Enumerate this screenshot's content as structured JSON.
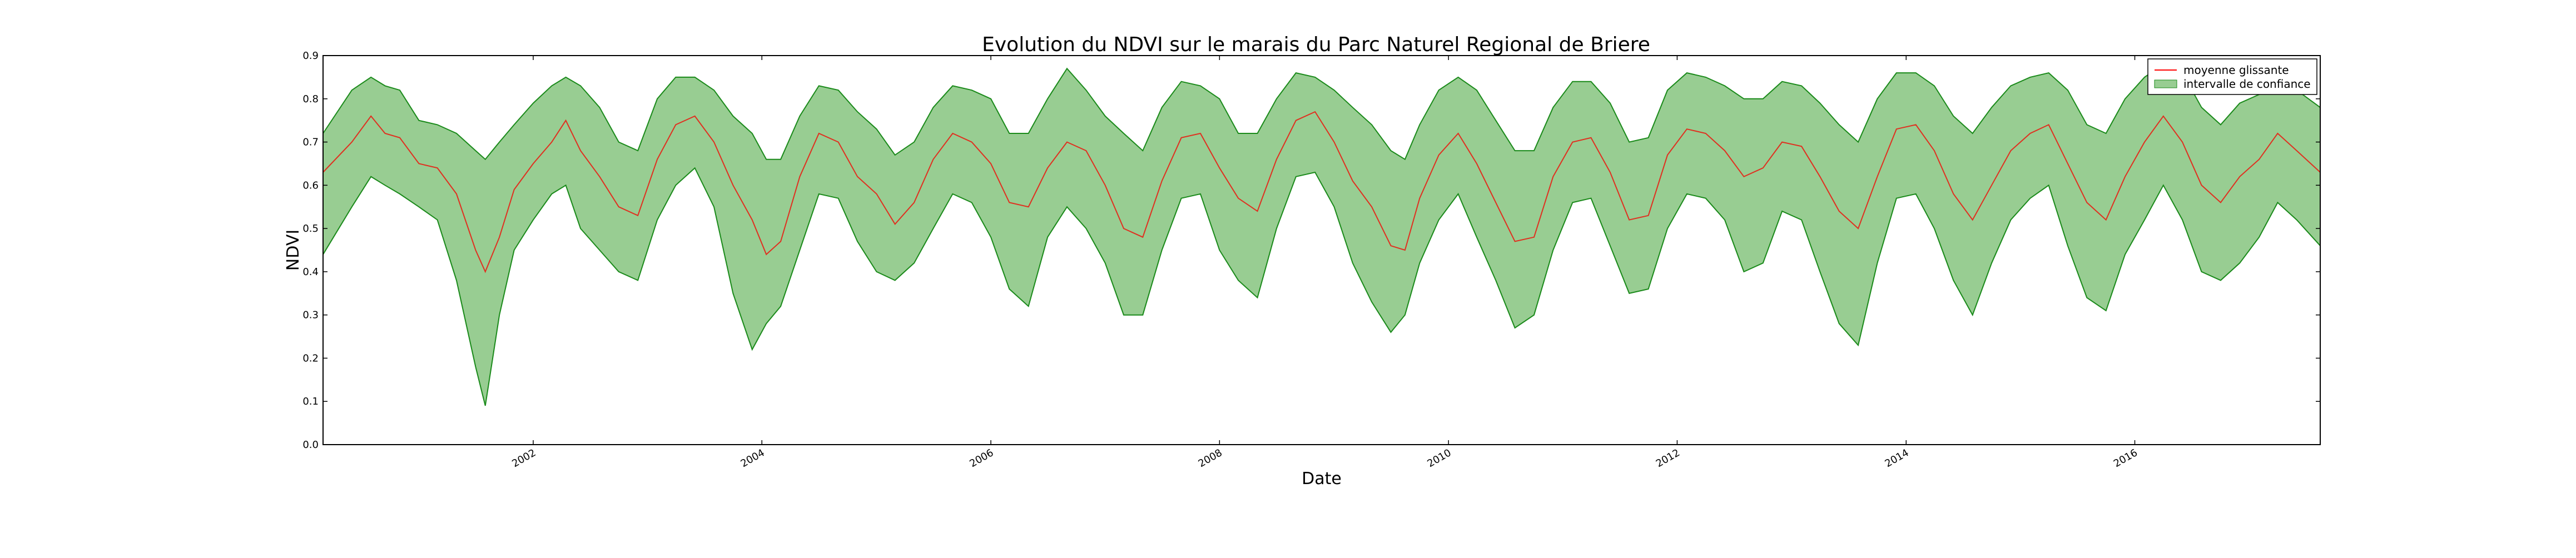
{
  "chart_data": {
    "type": "area",
    "title": "Evolution du NDVI sur le marais du Parc Naturel Regional de Briere",
    "xlabel": "Date",
    "ylabel": "NDVI",
    "xlim": [
      "2000-03-01",
      "2017-08-15"
    ],
    "ylim": [
      0.0,
      0.9
    ],
    "yticks": [
      "0.0",
      "0.1",
      "0.2",
      "0.3",
      "0.4",
      "0.5",
      "0.6",
      "0.7",
      "0.8",
      "0.9"
    ],
    "xticks": [
      "2002",
      "2004",
      "2006",
      "2008",
      "2010",
      "2012",
      "2014",
      "2016"
    ],
    "grid": false,
    "legend": {
      "position": "top-right",
      "entries": [
        {
          "label": "moyenne glissante",
          "type": "line",
          "color": "#ff0000"
        },
        {
          "label": "intervalle de confiance",
          "type": "area",
          "color": "#98cd92"
        }
      ]
    },
    "colors": {
      "mean_line": "#e03020",
      "band_fill": "#98cd92",
      "band_edge": "#1a8a1a"
    },
    "series": [
      {
        "name": "moyenne glissante",
        "role": "mean",
        "points": [
          [
            "2000-03-01",
            0.63
          ],
          [
            "2000-06-01",
            0.7
          ],
          [
            "2000-08-01",
            0.76
          ],
          [
            "2000-09-15",
            0.72
          ],
          [
            "2000-11-01",
            0.71
          ],
          [
            "2001-01-01",
            0.65
          ],
          [
            "2001-03-01",
            0.64
          ],
          [
            "2001-05-01",
            0.58
          ],
          [
            "2001-07-01",
            0.45
          ],
          [
            "2001-08-01",
            0.4
          ],
          [
            "2001-09-15",
            0.48
          ],
          [
            "2001-11-01",
            0.59
          ],
          [
            "2002-01-01",
            0.65
          ],
          [
            "2002-03-01",
            0.7
          ],
          [
            "2002-04-15",
            0.75
          ],
          [
            "2002-06-01",
            0.68
          ],
          [
            "2002-08-01",
            0.62
          ],
          [
            "2002-10-01",
            0.55
          ],
          [
            "2002-12-01",
            0.53
          ],
          [
            "2003-02-01",
            0.66
          ],
          [
            "2003-04-01",
            0.74
          ],
          [
            "2003-06-01",
            0.76
          ],
          [
            "2003-08-01",
            0.7
          ],
          [
            "2003-10-01",
            0.6
          ],
          [
            "2003-12-01",
            0.52
          ],
          [
            "2004-01-15",
            0.44
          ],
          [
            "2004-03-01",
            0.47
          ],
          [
            "2004-05-01",
            0.62
          ],
          [
            "2004-07-01",
            0.72
          ],
          [
            "2004-09-01",
            0.7
          ],
          [
            "2004-11-01",
            0.62
          ],
          [
            "2005-01-01",
            0.58
          ],
          [
            "2005-03-01",
            0.51
          ],
          [
            "2005-05-01",
            0.56
          ],
          [
            "2005-07-01",
            0.66
          ],
          [
            "2005-09-01",
            0.72
          ],
          [
            "2005-11-01",
            0.7
          ],
          [
            "2006-01-01",
            0.65
          ],
          [
            "2006-03-01",
            0.56
          ],
          [
            "2006-05-01",
            0.55
          ],
          [
            "2006-07-01",
            0.64
          ],
          [
            "2006-09-01",
            0.7
          ],
          [
            "2006-11-01",
            0.68
          ],
          [
            "2007-01-01",
            0.6
          ],
          [
            "2007-03-01",
            0.5
          ],
          [
            "2007-05-01",
            0.48
          ],
          [
            "2007-07-01",
            0.61
          ],
          [
            "2007-09-01",
            0.71
          ],
          [
            "2007-11-01",
            0.72
          ],
          [
            "2008-01-01",
            0.64
          ],
          [
            "2008-03-01",
            0.57
          ],
          [
            "2008-05-01",
            0.54
          ],
          [
            "2008-07-01",
            0.66
          ],
          [
            "2008-09-01",
            0.75
          ],
          [
            "2008-11-01",
            0.77
          ],
          [
            "2009-01-01",
            0.7
          ],
          [
            "2009-03-01",
            0.61
          ],
          [
            "2009-05-01",
            0.55
          ],
          [
            "2009-07-01",
            0.46
          ],
          [
            "2009-08-15",
            0.45
          ],
          [
            "2009-10-01",
            0.57
          ],
          [
            "2009-12-01",
            0.67
          ],
          [
            "2010-02-01",
            0.72
          ],
          [
            "2010-04-01",
            0.65
          ],
          [
            "2010-06-01",
            0.56
          ],
          [
            "2010-08-01",
            0.47
          ],
          [
            "2010-10-01",
            0.48
          ],
          [
            "2010-12-01",
            0.62
          ],
          [
            "2011-02-01",
            0.7
          ],
          [
            "2011-04-01",
            0.71
          ],
          [
            "2011-06-01",
            0.63
          ],
          [
            "2011-08-01",
            0.52
          ],
          [
            "2011-10-01",
            0.53
          ],
          [
            "2011-12-01",
            0.67
          ],
          [
            "2012-02-01",
            0.73
          ],
          [
            "2012-04-01",
            0.72
          ],
          [
            "2012-06-01",
            0.68
          ],
          [
            "2012-08-01",
            0.62
          ],
          [
            "2012-10-01",
            0.64
          ],
          [
            "2012-12-01",
            0.7
          ],
          [
            "2013-02-01",
            0.69
          ],
          [
            "2013-04-01",
            0.62
          ],
          [
            "2013-06-01",
            0.54
          ],
          [
            "2013-08-01",
            0.5
          ],
          [
            "2013-10-01",
            0.62
          ],
          [
            "2013-12-01",
            0.73
          ],
          [
            "2014-02-01",
            0.74
          ],
          [
            "2014-04-01",
            0.68
          ],
          [
            "2014-06-01",
            0.58
          ],
          [
            "2014-08-01",
            0.52
          ],
          [
            "2014-10-01",
            0.6
          ],
          [
            "2014-12-01",
            0.68
          ],
          [
            "2015-02-01",
            0.72
          ],
          [
            "2015-04-01",
            0.74
          ],
          [
            "2015-06-01",
            0.65
          ],
          [
            "2015-08-01",
            0.56
          ],
          [
            "2015-10-01",
            0.52
          ],
          [
            "2015-12-01",
            0.62
          ],
          [
            "2016-02-01",
            0.7
          ],
          [
            "2016-04-01",
            0.76
          ],
          [
            "2016-06-01",
            0.7
          ],
          [
            "2016-08-01",
            0.6
          ],
          [
            "2016-10-01",
            0.56
          ],
          [
            "2016-12-01",
            0.62
          ],
          [
            "2017-02-01",
            0.66
          ],
          [
            "2017-04-01",
            0.72
          ],
          [
            "2017-06-01",
            0.68
          ],
          [
            "2017-08-15",
            0.63
          ]
        ]
      },
      {
        "name": "intervalle de confiance",
        "role": "band",
        "points": [
          [
            "2000-03-01",
            0.44,
            0.72
          ],
          [
            "2000-06-01",
            0.55,
            0.82
          ],
          [
            "2000-08-01",
            0.62,
            0.85
          ],
          [
            "2000-09-15",
            0.6,
            0.83
          ],
          [
            "2000-11-01",
            0.58,
            0.82
          ],
          [
            "2001-01-01",
            0.55,
            0.75
          ],
          [
            "2001-03-01",
            0.52,
            0.74
          ],
          [
            "2001-05-01",
            0.38,
            0.72
          ],
          [
            "2001-07-01",
            0.18,
            0.68
          ],
          [
            "2001-08-01",
            0.09,
            0.66
          ],
          [
            "2001-09-15",
            0.3,
            0.7
          ],
          [
            "2001-11-01",
            0.45,
            0.74
          ],
          [
            "2002-01-01",
            0.52,
            0.79
          ],
          [
            "2002-03-01",
            0.58,
            0.83
          ],
          [
            "2002-04-15",
            0.6,
            0.85
          ],
          [
            "2002-06-01",
            0.5,
            0.83
          ],
          [
            "2002-08-01",
            0.45,
            0.78
          ],
          [
            "2002-10-01",
            0.4,
            0.7
          ],
          [
            "2002-12-01",
            0.38,
            0.68
          ],
          [
            "2003-02-01",
            0.52,
            0.8
          ],
          [
            "2003-04-01",
            0.6,
            0.85
          ],
          [
            "2003-06-01",
            0.64,
            0.85
          ],
          [
            "2003-08-01",
            0.55,
            0.82
          ],
          [
            "2003-10-01",
            0.35,
            0.76
          ],
          [
            "2003-12-01",
            0.22,
            0.72
          ],
          [
            "2004-01-15",
            0.28,
            0.66
          ],
          [
            "2004-03-01",
            0.32,
            0.66
          ],
          [
            "2004-05-01",
            0.45,
            0.76
          ],
          [
            "2004-07-01",
            0.58,
            0.83
          ],
          [
            "2004-09-01",
            0.57,
            0.82
          ],
          [
            "2004-11-01",
            0.47,
            0.77
          ],
          [
            "2005-01-01",
            0.4,
            0.73
          ],
          [
            "2005-03-01",
            0.38,
            0.67
          ],
          [
            "2005-05-01",
            0.42,
            0.7
          ],
          [
            "2005-07-01",
            0.5,
            0.78
          ],
          [
            "2005-09-01",
            0.58,
            0.83
          ],
          [
            "2005-11-01",
            0.56,
            0.82
          ],
          [
            "2006-01-01",
            0.48,
            0.8
          ],
          [
            "2006-03-01",
            0.36,
            0.72
          ],
          [
            "2006-05-01",
            0.32,
            0.72
          ],
          [
            "2006-07-01",
            0.48,
            0.8
          ],
          [
            "2006-09-01",
            0.55,
            0.87
          ],
          [
            "2006-11-01",
            0.5,
            0.82
          ],
          [
            "2007-01-01",
            0.42,
            0.76
          ],
          [
            "2007-03-01",
            0.3,
            0.72
          ],
          [
            "2007-05-01",
            0.3,
            0.68
          ],
          [
            "2007-07-01",
            0.45,
            0.78
          ],
          [
            "2007-09-01",
            0.57,
            0.84
          ],
          [
            "2007-11-01",
            0.58,
            0.83
          ],
          [
            "2008-01-01",
            0.45,
            0.8
          ],
          [
            "2008-03-01",
            0.38,
            0.72
          ],
          [
            "2008-05-01",
            0.34,
            0.72
          ],
          [
            "2008-07-01",
            0.5,
            0.8
          ],
          [
            "2008-09-01",
            0.62,
            0.86
          ],
          [
            "2008-11-01",
            0.63,
            0.85
          ],
          [
            "2009-01-01",
            0.55,
            0.82
          ],
          [
            "2009-03-01",
            0.42,
            0.78
          ],
          [
            "2009-05-01",
            0.33,
            0.74
          ],
          [
            "2009-07-01",
            0.26,
            0.68
          ],
          [
            "2009-08-15",
            0.3,
            0.66
          ],
          [
            "2009-10-01",
            0.42,
            0.74
          ],
          [
            "2009-12-01",
            0.52,
            0.82
          ],
          [
            "2010-02-01",
            0.58,
            0.85
          ],
          [
            "2010-04-01",
            0.48,
            0.82
          ],
          [
            "2010-06-01",
            0.38,
            0.75
          ],
          [
            "2010-08-01",
            0.27,
            0.68
          ],
          [
            "2010-10-01",
            0.3,
            0.68
          ],
          [
            "2010-12-01",
            0.45,
            0.78
          ],
          [
            "2011-02-01",
            0.56,
            0.84
          ],
          [
            "2011-04-01",
            0.57,
            0.84
          ],
          [
            "2011-06-01",
            0.46,
            0.79
          ],
          [
            "2011-08-01",
            0.35,
            0.7
          ],
          [
            "2011-10-01",
            0.36,
            0.71
          ],
          [
            "2011-12-01",
            0.5,
            0.82
          ],
          [
            "2012-02-01",
            0.58,
            0.86
          ],
          [
            "2012-04-01",
            0.57,
            0.85
          ],
          [
            "2012-06-01",
            0.52,
            0.83
          ],
          [
            "2012-08-01",
            0.4,
            0.8
          ],
          [
            "2012-10-01",
            0.42,
            0.8
          ],
          [
            "2012-12-01",
            0.54,
            0.84
          ],
          [
            "2013-02-01",
            0.52,
            0.83
          ],
          [
            "2013-04-01",
            0.4,
            0.79
          ],
          [
            "2013-06-01",
            0.28,
            0.74
          ],
          [
            "2013-08-01",
            0.23,
            0.7
          ],
          [
            "2013-10-01",
            0.42,
            0.8
          ],
          [
            "2013-12-01",
            0.57,
            0.86
          ],
          [
            "2014-02-01",
            0.58,
            0.86
          ],
          [
            "2014-04-01",
            0.5,
            0.83
          ],
          [
            "2014-06-01",
            0.38,
            0.76
          ],
          [
            "2014-08-01",
            0.3,
            0.72
          ],
          [
            "2014-10-01",
            0.42,
            0.78
          ],
          [
            "2014-12-01",
            0.52,
            0.83
          ],
          [
            "2015-02-01",
            0.57,
            0.85
          ],
          [
            "2015-04-01",
            0.6,
            0.86
          ],
          [
            "2015-06-01",
            0.46,
            0.82
          ],
          [
            "2015-08-01",
            0.34,
            0.74
          ],
          [
            "2015-10-01",
            0.31,
            0.72
          ],
          [
            "2015-12-01",
            0.44,
            0.8
          ],
          [
            "2016-02-01",
            0.52,
            0.85
          ],
          [
            "2016-04-01",
            0.6,
            0.88
          ],
          [
            "2016-06-01",
            0.52,
            0.86
          ],
          [
            "2016-08-01",
            0.4,
            0.78
          ],
          [
            "2016-10-01",
            0.38,
            0.74
          ],
          [
            "2016-12-01",
            0.42,
            0.79
          ],
          [
            "2017-02-01",
            0.48,
            0.81
          ],
          [
            "2017-04-01",
            0.56,
            0.84
          ],
          [
            "2017-06-01",
            0.52,
            0.82
          ],
          [
            "2017-08-15",
            0.46,
            0.78
          ]
        ]
      }
    ]
  }
}
